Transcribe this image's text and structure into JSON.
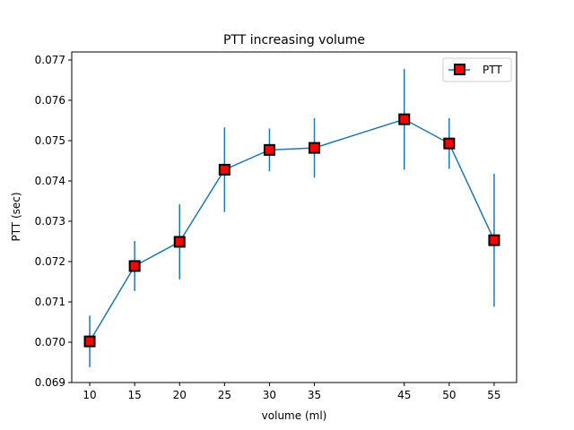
{
  "chart_data": {
    "type": "line",
    "title": "PTT increasing volume",
    "xlabel": "volume (ml)",
    "ylabel": "PTT (sec)",
    "xlim": [
      8,
      57.5
    ],
    "ylim": [
      0.069,
      0.0772
    ],
    "xticks": [
      10,
      15,
      20,
      25,
      30,
      35,
      45,
      50,
      55
    ],
    "yticks": [
      0.069,
      0.07,
      0.071,
      0.072,
      0.073,
      0.074,
      0.075,
      0.076,
      0.077
    ],
    "ytick_labels": [
      "0.069",
      "0.070",
      "0.071",
      "0.072",
      "0.073",
      "0.074",
      "0.075",
      "0.076",
      "0.077"
    ],
    "grid": false,
    "legend_position": "top-right",
    "series": [
      {
        "name": "PTT",
        "line_color": "#1f77b4",
        "marker": "square",
        "marker_face": "#ff0000",
        "marker_edge": "#000000",
        "x": [
          10,
          15,
          20,
          25,
          30,
          35,
          45,
          50,
          55
        ],
        "y": [
          0.07002,
          0.07189,
          0.07249,
          0.07428,
          0.07477,
          0.07482,
          0.07553,
          0.07493,
          0.07253
        ],
        "err": [
          0.00064,
          0.00062,
          0.00093,
          0.00105,
          0.00053,
          0.00074,
          0.00125,
          0.00063,
          0.00165
        ]
      }
    ]
  }
}
